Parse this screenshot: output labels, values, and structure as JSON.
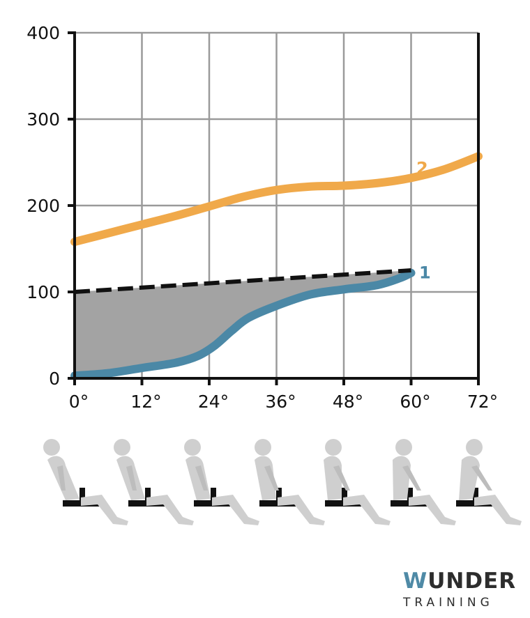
{
  "chart_data": {
    "type": "line",
    "x": [
      0,
      12,
      24,
      36,
      48,
      60,
      72
    ],
    "x_tick_labels": [
      "0°",
      "12°",
      "24°",
      "36°",
      "48°",
      "60°",
      "72°"
    ],
    "y_tick_labels": [
      "400",
      "300",
      "200",
      "100",
      "0"
    ],
    "ylim": [
      0,
      400
    ],
    "xlim": [
      0,
      72
    ],
    "grid": true,
    "series": [
      {
        "name": "2",
        "color": "#f0a94a",
        "points": [
          [
            0,
            158
          ],
          [
            6,
            168
          ],
          [
            12,
            178
          ],
          [
            18,
            188
          ],
          [
            24,
            199
          ],
          [
            30,
            210
          ],
          [
            36,
            218
          ],
          [
            42,
            222
          ],
          [
            48,
            223
          ],
          [
            54,
            226
          ],
          [
            60,
            232
          ],
          [
            66,
            242
          ],
          [
            72,
            257
          ]
        ]
      },
      {
        "name": "1",
        "color": "#4b88a6",
        "points": [
          [
            0,
            3
          ],
          [
            6,
            6
          ],
          [
            12,
            12
          ],
          [
            18,
            18
          ],
          [
            22,
            26
          ],
          [
            25,
            38
          ],
          [
            28,
            55
          ],
          [
            31,
            70
          ],
          [
            36,
            84
          ],
          [
            42,
            97
          ],
          [
            48,
            103
          ],
          [
            54,
            108
          ],
          [
            58,
            116
          ],
          [
            60,
            122
          ]
        ]
      }
    ],
    "reference_line": {
      "style": "dashed",
      "color": "#111111",
      "points": [
        [
          0,
          100
        ],
        [
          60,
          125
        ]
      ]
    },
    "shaded_region": {
      "between": [
        "reference_line",
        "1"
      ],
      "color": "#a3a3a3"
    }
  },
  "figures": {
    "count": 7,
    "description_icons": "seated-person-forward-lean-icon"
  },
  "logo": {
    "word_accent": "W",
    "word_rest": "UNDER",
    "sub": "TRAINING"
  }
}
